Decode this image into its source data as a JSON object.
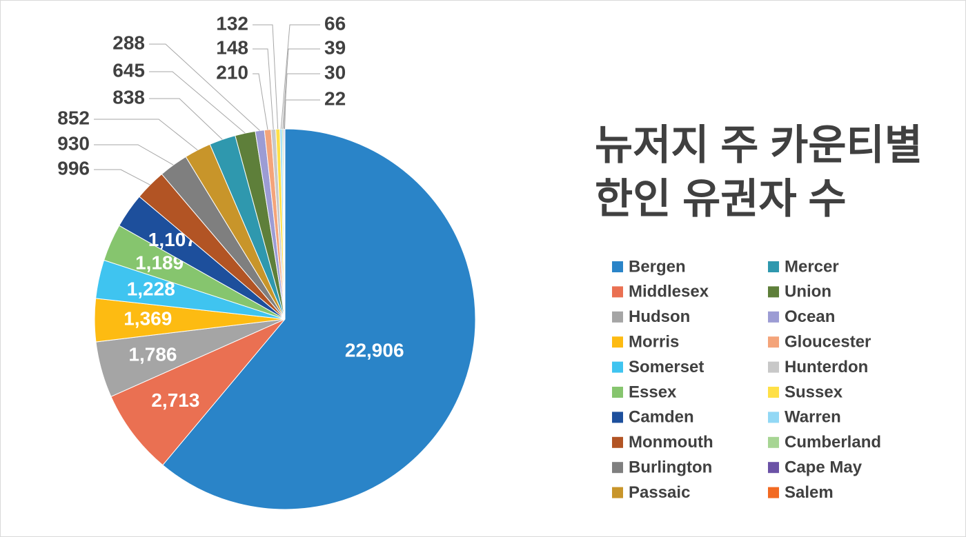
{
  "chart_data": {
    "type": "pie",
    "title": "뉴저지 주 카운티별 한인 유권자 수",
    "categories": [
      "Bergen",
      "Middlesex",
      "Hudson",
      "Morris",
      "Somerset",
      "Essex",
      "Camden",
      "Monmouth",
      "Burlington",
      "Passaic",
      "Mercer",
      "Union",
      "Ocean",
      "Gloucester",
      "Hunterdon",
      "Sussex",
      "Warren",
      "Cumberland",
      "Cape May",
      "Salem"
    ],
    "values": [
      22906,
      2713,
      1786,
      1369,
      1228,
      1189,
      1107,
      996,
      930,
      852,
      838,
      645,
      288,
      210,
      148,
      132,
      66,
      39,
      30,
      22
    ],
    "value_labels": [
      "22,906",
      "2,713",
      "1,786",
      "1,369",
      "1,228",
      "1,189",
      "1,107",
      "996",
      "930",
      "852",
      "838",
      "645",
      "288",
      "210",
      "148",
      "132",
      "66",
      "39",
      "30",
      "22"
    ],
    "colors": [
      "#2a84c8",
      "#ea7052",
      "#a5a5a5",
      "#fdbb12",
      "#3fc4f0",
      "#86c56e",
      "#1d4f9c",
      "#b25424",
      "#7f7f7f",
      "#c8952a",
      "#2f98ae",
      "#5e7f3a",
      "#9c9cd4",
      "#f4a47a",
      "#c8c8c8",
      "#ffe047",
      "#92d8f5",
      "#a7d594",
      "#6b52a6",
      "#f26a22"
    ],
    "legend": "right"
  }
}
